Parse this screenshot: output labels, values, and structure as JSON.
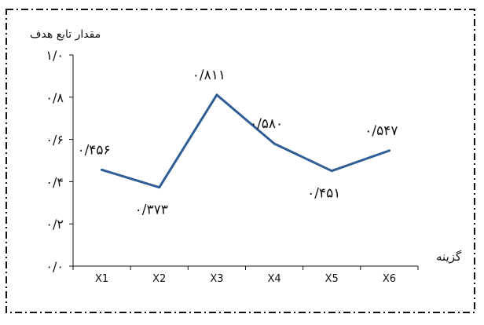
{
  "chart_data": {
    "type": "line",
    "ylabel": "مقدار تابع هدف",
    "xlabel": "گزینه",
    "categories": [
      "X1",
      "X2",
      "X3",
      "X4",
      "X5",
      "X6"
    ],
    "series": [
      {
        "values": [
          0.456,
          0.373,
          0.811,
          0.58,
          0.451,
          0.547
        ],
        "labels": [
          "۰/۴۵۶",
          "۰/۳۷۳",
          "۰/۸۱۱",
          "۰/۵۸۰",
          "۰/۴۵۱",
          "۰/۵۴۷"
        ],
        "color": "#2f5d95"
      }
    ],
    "ylim": [
      0,
      1.0
    ],
    "yticks": [
      0,
      0.2,
      0.4,
      0.6,
      0.8,
      1.0
    ],
    "ytick_labels": [
      "۰/۰",
      "۰/۲",
      "۰/۴",
      "۰/۶",
      "۰/۸",
      "۱/۰"
    ],
    "grid": false,
    "border_style": "dash-dot"
  }
}
